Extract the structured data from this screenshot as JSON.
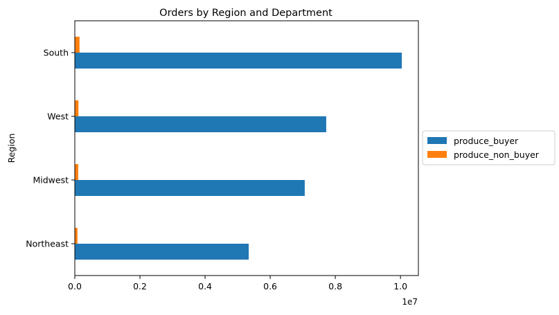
{
  "chart_data": {
    "type": "bar",
    "orientation": "horizontal",
    "title": "Orders by Region and Department",
    "xlabel": "",
    "ylabel": "Region",
    "x_offset_label": "1e7",
    "x_tick_labels": [
      "0.0",
      "0.2",
      "0.4",
      "0.6",
      "0.8",
      "1.0"
    ],
    "xlim": [
      0,
      1.055
    ],
    "categories": [
      "Northeast",
      "Midwest",
      "West",
      "South"
    ],
    "series": [
      {
        "name": "produce_buyer",
        "color": "#1f77b4",
        "values": [
          5340000,
          7060000,
          7720000,
          10040000
        ]
      },
      {
        "name": "produce_non_buyer",
        "color": "#ff7f0e",
        "values": [
          82000,
          105000,
          112000,
          145000
        ]
      }
    ],
    "legend_position": "right, outside plot",
    "grid": false
  }
}
